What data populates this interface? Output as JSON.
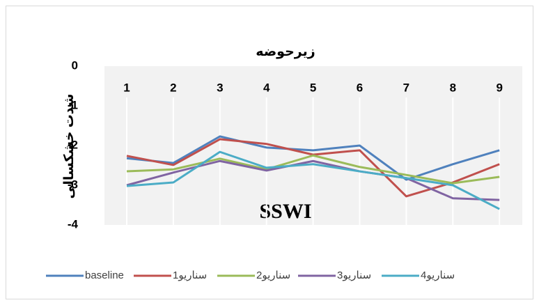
{
  "chart_data": {
    "type": "line",
    "title": "زیرحوضه",
    "y_label": "شدت خشکسالی",
    "annotation": "SSWI",
    "categories": [
      "1",
      "2",
      "3",
      "4",
      "5",
      "6",
      "7",
      "8",
      "9"
    ],
    "series": [
      {
        "name": "baseline",
        "color": "#4f81bd",
        "values": [
          -2.32,
          -2.44,
          -1.77,
          -2.05,
          -2.12,
          -2.0,
          -2.86,
          -2.47,
          -2.12
        ]
      },
      {
        "name": "سناریو1",
        "color": "#c0504d",
        "values": [
          -2.26,
          -2.49,
          -1.84,
          -1.96,
          -2.23,
          -2.12,
          -3.28,
          -2.93,
          -2.47
        ]
      },
      {
        "name": "سناریو2",
        "color": "#9bbb59",
        "values": [
          -2.65,
          -2.6,
          -2.33,
          -2.6,
          -2.25,
          -2.54,
          -2.74,
          -2.95,
          -2.79
        ]
      },
      {
        "name": "سناریو3",
        "color": "#8064a2",
        "values": [
          -3.0,
          -2.68,
          -2.39,
          -2.63,
          -2.39,
          -2.65,
          -2.82,
          -3.33,
          -3.37
        ]
      },
      {
        "name": "سناریو4",
        "color": "#4bacc6",
        "values": [
          -3.02,
          -2.93,
          -2.16,
          -2.56,
          -2.47,
          -2.65,
          -2.82,
          -3.0,
          -3.6
        ]
      }
    ],
    "ylim": [
      -4,
      0
    ],
    "yticks": [
      0,
      -1,
      -2,
      -3,
      -4
    ],
    "grid": true,
    "legend": "bottom"
  }
}
